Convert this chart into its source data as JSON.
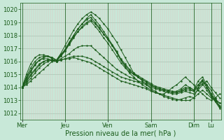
{
  "title": "",
  "xlabel": "Pression niveau de la mer( hPa )",
  "ylabel": "",
  "background_color": "#c8e8d8",
  "plot_bg_color": "#c8e8d8",
  "grid_major_color": "#b0d8c0",
  "grid_minor_color": "#f0b8b8",
  "line_color": "#1a5c1a",
  "ylim": [
    1011.5,
    1020.5
  ],
  "yticks": [
    1012,
    1013,
    1014,
    1015,
    1016,
    1017,
    1018,
    1019,
    1020
  ],
  "days": [
    "Mer",
    "Jeu",
    "Ven",
    "Sam",
    "Dim",
    "Lu"
  ],
  "day_x": [
    0,
    60,
    120,
    180,
    240,
    264
  ],
  "xlim": [
    -2,
    278
  ],
  "lines": [
    {
      "x": [
        0,
        6,
        12,
        18,
        24,
        30,
        36,
        42,
        48,
        54,
        60,
        66,
        72,
        78,
        84,
        90,
        96,
        102,
        108,
        114,
        120,
        126,
        132,
        138,
        144,
        150,
        156,
        162,
        168,
        174,
        180,
        186,
        192,
        198,
        204,
        210,
        216,
        222,
        228,
        234,
        240,
        246,
        252,
        258,
        264,
        270,
        276
      ],
      "y": [
        1014.0,
        1014.3,
        1014.7,
        1015.1,
        1015.5,
        1015.8,
        1016.0,
        1016.1,
        1016.1,
        1016.6,
        1017.2,
        1017.8,
        1018.4,
        1018.9,
        1019.3,
        1019.6,
        1019.8,
        1019.6,
        1019.3,
        1018.9,
        1018.5,
        1018.0,
        1017.5,
        1016.9,
        1016.3,
        1015.7,
        1015.1,
        1014.8,
        1014.5,
        1014.2,
        1013.9,
        1013.7,
        1013.5,
        1013.3,
        1013.2,
        1013.1,
        1013.0,
        1013.1,
        1013.2,
        1013.3,
        1013.2,
        1014.0,
        1014.5,
        1014.2,
        1013.8,
        1013.2,
        1012.5
      ]
    },
    {
      "x": [
        0,
        6,
        12,
        18,
        24,
        30,
        36,
        42,
        48,
        54,
        60,
        66,
        72,
        78,
        84,
        90,
        96,
        102,
        108,
        114,
        120,
        126,
        132,
        138,
        144,
        150,
        156,
        162,
        168,
        174,
        180,
        186,
        192,
        198,
        204,
        210,
        216,
        222,
        228,
        234,
        240,
        246,
        252,
        258,
        264,
        270,
        276
      ],
      "y": [
        1014.0,
        1014.5,
        1015.0,
        1015.4,
        1015.8,
        1016.0,
        1016.1,
        1016.1,
        1016.1,
        1016.4,
        1016.8,
        1017.3,
        1017.8,
        1018.3,
        1018.7,
        1019.0,
        1019.2,
        1018.9,
        1018.5,
        1018.1,
        1017.7,
        1017.2,
        1016.7,
        1016.1,
        1015.6,
        1015.1,
        1014.8,
        1014.5,
        1014.2,
        1014.0,
        1013.8,
        1013.6,
        1013.5,
        1013.5,
        1013.7,
        1014.0,
        1014.2,
        1014.5,
        1014.8,
        1014.5,
        1014.2,
        1013.8,
        1013.5,
        1013.2,
        1013.0,
        1013.2,
        1013.5
      ]
    },
    {
      "x": [
        0,
        6,
        12,
        18,
        24,
        30,
        36,
        42,
        48,
        54,
        60,
        66,
        72,
        78,
        84,
        90,
        96,
        102,
        108,
        114,
        120,
        126,
        132,
        138,
        144,
        150,
        156,
        162,
        168,
        174,
        180,
        186,
        192,
        198,
        204,
        210,
        216,
        222,
        228,
        234,
        240,
        246,
        252,
        258,
        264,
        270,
        276
      ],
      "y": [
        1014.0,
        1014.7,
        1015.3,
        1015.8,
        1016.1,
        1016.2,
        1016.2,
        1016.1,
        1016.0,
        1016.1,
        1016.2,
        1016.3,
        1016.4,
        1016.4,
        1016.4,
        1016.3,
        1016.2,
        1016.0,
        1015.8,
        1015.6,
        1015.4,
        1015.2,
        1015.0,
        1014.8,
        1014.7,
        1014.6,
        1014.5,
        1014.4,
        1014.3,
        1014.2,
        1014.0,
        1013.9,
        1013.8,
        1013.7,
        1013.6,
        1013.5,
        1013.5,
        1013.6,
        1013.7,
        1013.6,
        1013.5,
        1013.8,
        1014.2,
        1014.5,
        1014.0,
        1013.6,
        1013.2
      ]
    },
    {
      "x": [
        0,
        6,
        12,
        18,
        24,
        30,
        36,
        42,
        48,
        54,
        60,
        66,
        72,
        78,
        84,
        90,
        96,
        102,
        108,
        114,
        120,
        126,
        132,
        138,
        144,
        150,
        156,
        162,
        168,
        174,
        180,
        186,
        192,
        198,
        204,
        210,
        216,
        222,
        228,
        234,
        240,
        246,
        252,
        258,
        264,
        270,
        276
      ],
      "y": [
        1014.0,
        1014.2,
        1014.5,
        1014.8,
        1015.1,
        1015.4,
        1015.7,
        1016.0,
        1016.0,
        1016.1,
        1016.2,
        1016.2,
        1016.3,
        1016.2,
        1016.1,
        1016.0,
        1015.9,
        1015.7,
        1015.5,
        1015.3,
        1015.1,
        1014.9,
        1014.7,
        1014.5,
        1014.4,
        1014.3,
        1014.2,
        1014.1,
        1014.0,
        1013.9,
        1013.7,
        1013.6,
        1013.5,
        1013.4,
        1013.3,
        1013.2,
        1013.1,
        1013.0,
        1013.0,
        1013.0,
        1013.2,
        1013.5,
        1013.8,
        1013.5,
        1013.2,
        1013.0,
        1012.8
      ]
    },
    {
      "x": [
        0,
        6,
        12,
        18,
        24,
        30,
        36,
        42,
        48,
        54,
        60,
        66,
        72,
        78,
        84,
        90,
        96,
        102,
        108,
        114,
        120,
        126,
        132,
        138,
        144,
        150,
        156,
        162,
        168,
        174,
        180,
        186,
        192,
        198,
        204,
        210,
        216,
        222,
        228,
        234,
        240,
        246,
        252,
        258,
        264,
        270,
        276
      ],
      "y": [
        1014.0,
        1014.8,
        1015.5,
        1016.0,
        1016.3,
        1016.4,
        1016.4,
        1016.3,
        1016.1,
        1016.5,
        1016.9,
        1017.4,
        1017.9,
        1018.3,
        1018.6,
        1018.9,
        1019.1,
        1018.7,
        1018.3,
        1017.8,
        1017.4,
        1016.9,
        1016.4,
        1015.9,
        1015.5,
        1015.2,
        1015.0,
        1014.8,
        1014.6,
        1014.4,
        1014.2,
        1014.0,
        1013.9,
        1013.8,
        1013.7,
        1013.6,
        1013.6,
        1013.7,
        1013.9,
        1014.0,
        1013.8,
        1014.5,
        1014.8,
        1014.2,
        1013.5,
        1013.0,
        1012.6
      ]
    },
    {
      "x": [
        0,
        6,
        12,
        18,
        24,
        30,
        36,
        42,
        48,
        54,
        60,
        66,
        72,
        78,
        84,
        90,
        96,
        102,
        108,
        114,
        120,
        126,
        132,
        138,
        144,
        150,
        156,
        162,
        168,
        174,
        180,
        186,
        192,
        198,
        204,
        210,
        216,
        222,
        228,
        234,
        240,
        246,
        252,
        258,
        264,
        270,
        276
      ],
      "y": [
        1014.0,
        1014.4,
        1014.9,
        1015.3,
        1015.7,
        1016.0,
        1016.1,
        1016.1,
        1016.0,
        1016.2,
        1016.4,
        1016.6,
        1016.9,
        1017.1,
        1017.2,
        1017.2,
        1017.2,
        1016.9,
        1016.6,
        1016.3,
        1016.0,
        1015.7,
        1015.4,
        1015.2,
        1015.0,
        1014.8,
        1014.7,
        1014.5,
        1014.4,
        1014.3,
        1014.1,
        1014.0,
        1013.9,
        1013.8,
        1013.7,
        1013.6,
        1013.6,
        1013.7,
        1013.8,
        1013.8,
        1013.7,
        1014.2,
        1014.5,
        1014.0,
        1013.5,
        1013.1,
        1012.8
      ]
    },
    {
      "x": [
        0,
        6,
        12,
        18,
        24,
        30,
        36,
        42,
        48,
        54,
        60,
        66,
        72,
        78,
        84,
        90,
        96,
        102,
        108,
        114,
        120,
        126,
        132,
        138,
        144,
        150,
        156,
        162,
        168,
        174,
        180,
        186,
        192,
        198,
        204,
        210,
        216,
        222,
        228,
        234,
        240,
        246,
        252,
        258,
        264,
        270,
        276
      ],
      "y": [
        1014.0,
        1014.6,
        1015.2,
        1015.7,
        1016.1,
        1016.3,
        1016.4,
        1016.3,
        1016.1,
        1016.5,
        1016.9,
        1017.5,
        1018.0,
        1018.5,
        1018.9,
        1019.2,
        1019.4,
        1019.0,
        1018.6,
        1018.1,
        1017.7,
        1017.2,
        1016.7,
        1016.1,
        1015.7,
        1015.3,
        1015.0,
        1014.8,
        1014.6,
        1014.4,
        1014.2,
        1014.0,
        1013.9,
        1013.8,
        1013.7,
        1013.6,
        1013.6,
        1013.8,
        1014.0,
        1013.9,
        1013.7,
        1014.0,
        1014.3,
        1013.8,
        1013.3,
        1012.9,
        1012.5
      ]
    },
    {
      "x": [
        0,
        6,
        12,
        18,
        24,
        30,
        36,
        42,
        48,
        54,
        60,
        66,
        72,
        78,
        84,
        90,
        96,
        102,
        108,
        114,
        120,
        126,
        132,
        138,
        144,
        150,
        156,
        162,
        168,
        174,
        180,
        186,
        192,
        198,
        204,
        210,
        216,
        222,
        228,
        234,
        240,
        246,
        252,
        258,
        264,
        270,
        276
      ],
      "y": [
        1014.0,
        1015.0,
        1015.8,
        1016.3,
        1016.5,
        1016.5,
        1016.4,
        1016.2,
        1016.0,
        1016.4,
        1016.8,
        1017.4,
        1018.0,
        1018.5,
        1018.9,
        1019.3,
        1019.6,
        1019.2,
        1018.8,
        1018.3,
        1017.8,
        1017.3,
        1016.8,
        1016.2,
        1015.8,
        1015.4,
        1015.1,
        1014.9,
        1014.7,
        1014.5,
        1014.3,
        1014.1,
        1014.0,
        1013.9,
        1013.8,
        1013.7,
        1013.7,
        1013.9,
        1014.2,
        1014.0,
        1013.8,
        1014.2,
        1014.6,
        1014.0,
        1013.4,
        1012.9,
        1012.4
      ]
    }
  ],
  "marker": ".",
  "markersize": 1.5,
  "linewidth": 0.7,
  "xlabel_fontsize": 7,
  "tick_fontsize": 6,
  "fig_width": 3.2,
  "fig_height": 2.0,
  "dpi": 100
}
